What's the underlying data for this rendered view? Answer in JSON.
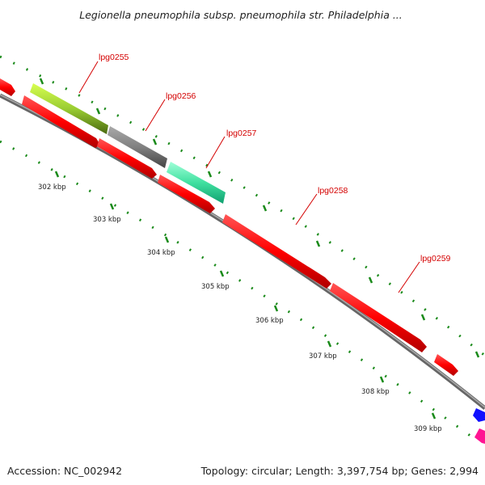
{
  "title": "Legionella pneumophila subsp. pneumophila str. Philadelphia ...",
  "footer": {
    "accession": "Accession: NC_002942",
    "summary": "Topology: circular; Length: 3,397,754 bp; Genes: 2,994"
  },
  "genes": [
    {
      "name": "lpg0255",
      "color": "#9acd32"
    },
    {
      "name": "lpg0256",
      "color": "#808080"
    },
    {
      "name": "lpg0257",
      "color": "#40e0a0"
    },
    {
      "name": "lpg0258",
      "color": "#ff0000"
    },
    {
      "name": "lpg0259",
      "color": "#ff0000"
    }
  ],
  "scale_labels": [
    "302 kbp",
    "303 kbp",
    "304 kbp",
    "305 kbp",
    "306 kbp",
    "307 kbp",
    "308 kbp",
    "309 kbp"
  ],
  "colors": {
    "forward_strand": "#ff0000",
    "backbone": "#888888",
    "tick": "#1a8a1a",
    "label_line": "#d40000",
    "extra_blue": "#1010ff",
    "extra_magenta": "#ff1493"
  }
}
